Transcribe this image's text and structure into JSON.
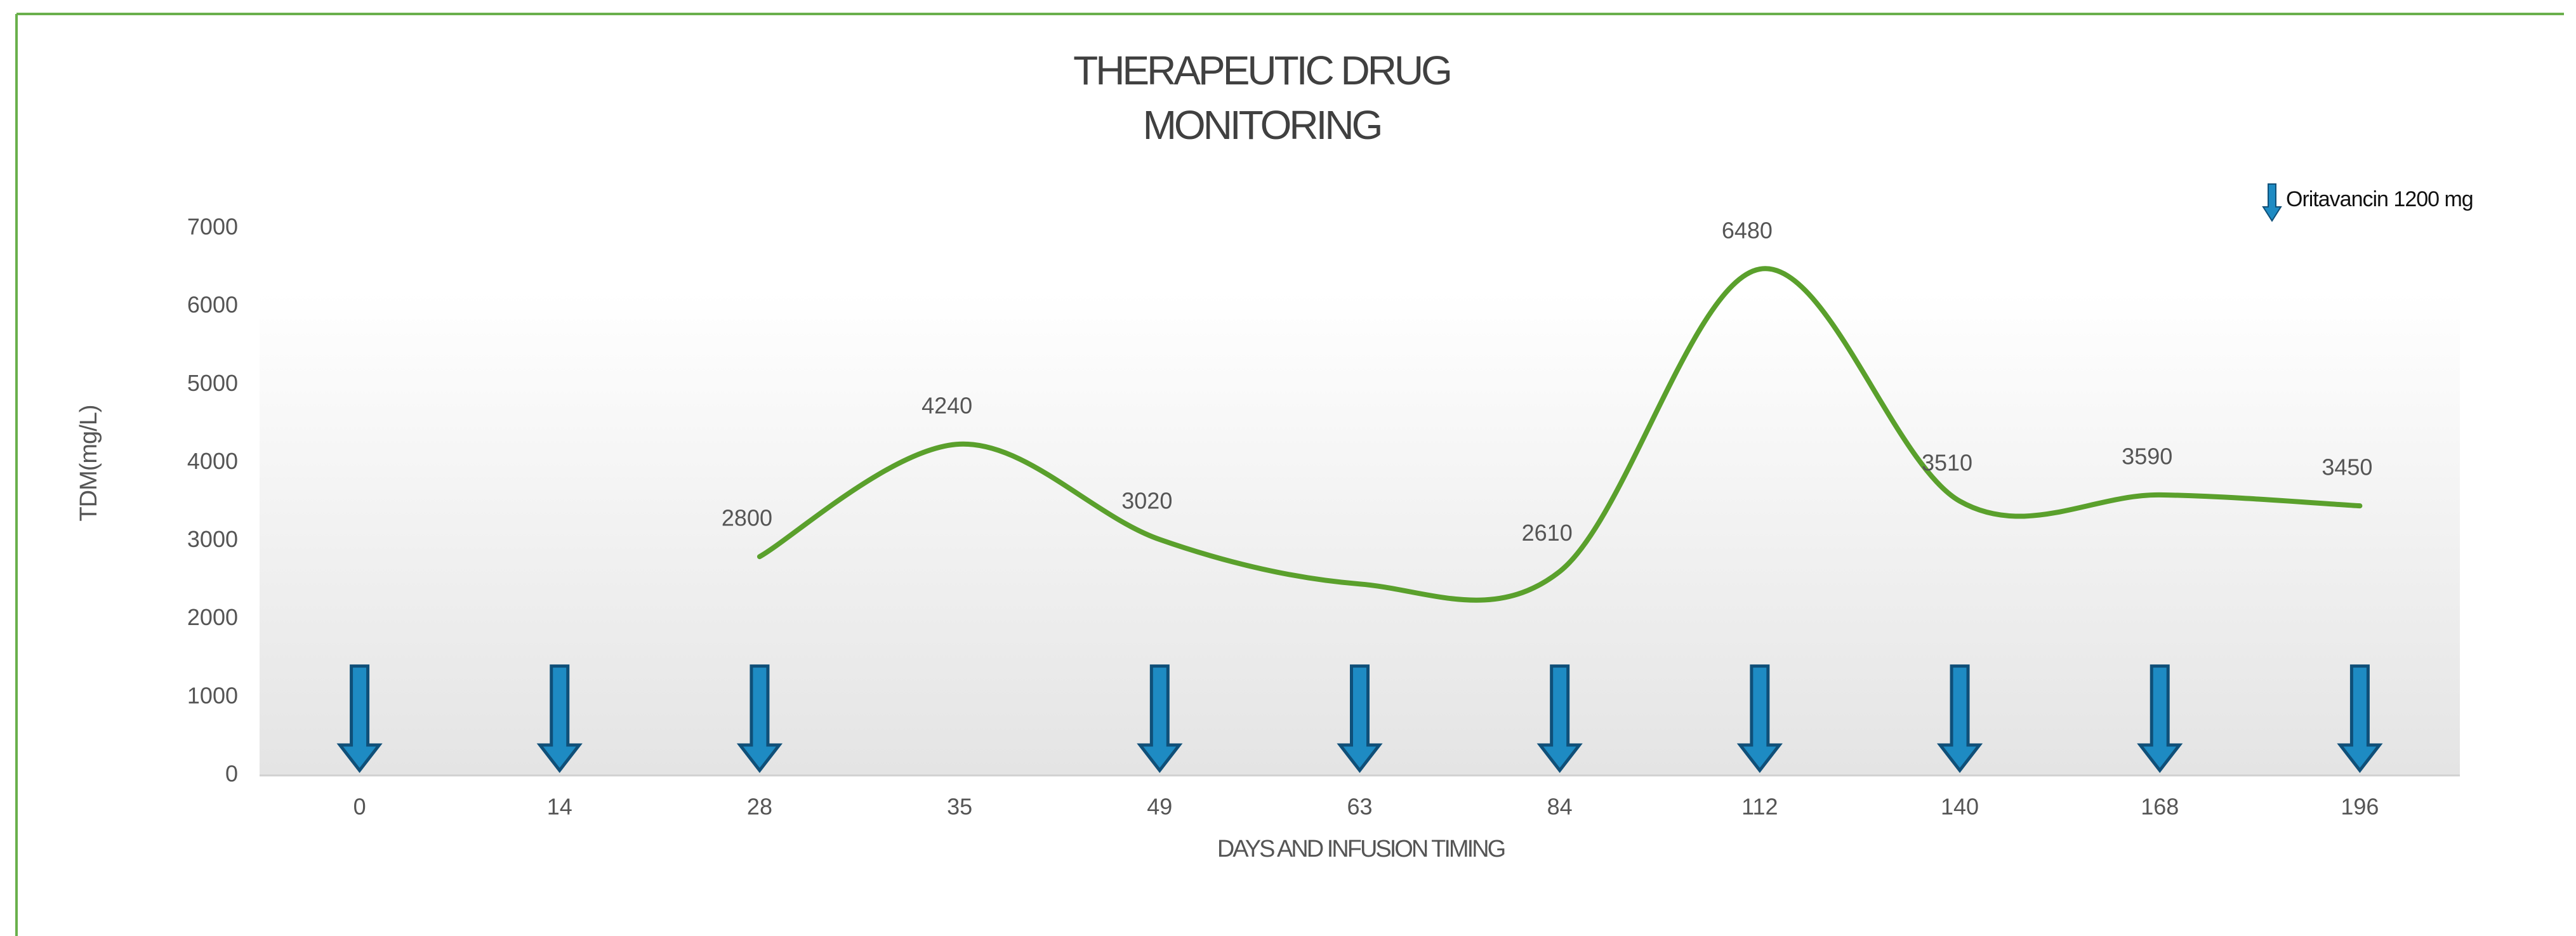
{
  "chart_data": {
    "type": "line",
    "title": "THERAPEUTIC DRUG MONITORING",
    "x_label": "DAYS AND INFUSION TIMING",
    "y_label": "TDM(mg/L)",
    "categories": [
      "0",
      "14",
      "28",
      "35",
      "49",
      "63",
      "84",
      "112",
      "140",
      "168",
      "196"
    ],
    "series": [
      {
        "name": null,
        "color": "#5aa02c",
        "smooth": true,
        "values": [
          null,
          null,
          2800,
          4240,
          3020,
          2450,
          2610,
          6480,
          3510,
          3590,
          3450
        ],
        "value_labels": [
          null,
          null,
          "2800",
          "4240",
          "3020",
          null,
          "2610",
          "6480",
          "3510",
          "3590",
          "3450"
        ]
      },
      {
        "name": "Oritavancin 1200 mg",
        "color": "#1e8bc3",
        "marker": "arrow",
        "values": [
          1400,
          1400,
          1400,
          null,
          1400,
          1400,
          1400,
          1400,
          1400,
          1400,
          1400
        ]
      }
    ],
    "ylim": [
      0,
      7000
    ],
    "yticks": [
      0,
      1000,
      2000,
      3000,
      4000,
      5000,
      6000,
      7000
    ],
    "grid": false,
    "legend": "top-right"
  }
}
